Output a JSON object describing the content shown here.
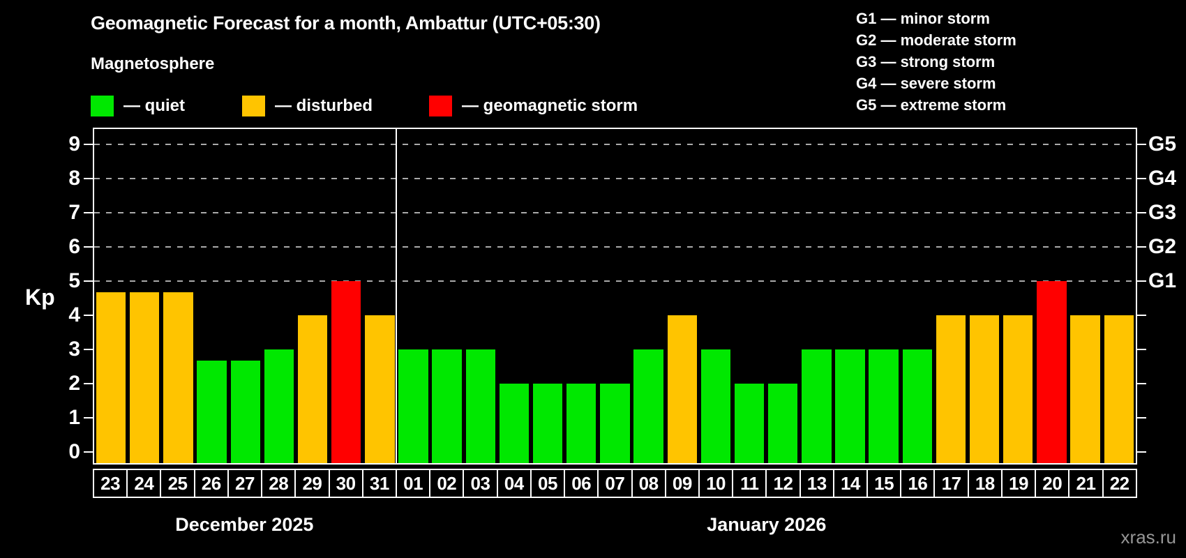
{
  "page": {
    "background": "#000000",
    "watermark": "xras.ru"
  },
  "header": {
    "title": "Geomagnetic Forecast for a month, Ambattur (UTC+05:30)",
    "subtitle": "Magnetosphere"
  },
  "legend": {
    "items": [
      {
        "key": "quiet",
        "label": "— quiet",
        "color": "#00e800"
      },
      {
        "key": "disturbed",
        "label": "— disturbed",
        "color": "#ffc400"
      },
      {
        "key": "storm",
        "label": "— geomagnetic storm",
        "color": "#ff0000"
      }
    ]
  },
  "g_legend": {
    "items": [
      "G1 — minor storm",
      "G2 — moderate storm",
      "G3 — strong storm",
      "G4 — severe storm",
      "G5 — extreme storm"
    ]
  },
  "chart_data": {
    "type": "bar",
    "title": "Geomagnetic Forecast for a month, Ambattur (UTC+05:30)",
    "ylabel": "Kp",
    "ylim": [
      0,
      9.5
    ],
    "y_ticks": [
      0,
      1,
      2,
      3,
      4,
      5,
      6,
      7,
      8,
      9
    ],
    "gridlines_at": [
      5,
      6,
      7,
      8,
      9
    ],
    "grid": true,
    "legend_position": "top",
    "right_axis_labels": [
      {
        "kp": 5,
        "label": "G1"
      },
      {
        "kp": 6,
        "label": "G2"
      },
      {
        "kp": 7,
        "label": "G3"
      },
      {
        "kp": 8,
        "label": "G4"
      },
      {
        "kp": 9,
        "label": "G5"
      }
    ],
    "months": [
      {
        "label": "December 2025",
        "days": 9
      },
      {
        "label": "January 2026",
        "days": 22
      }
    ],
    "status_colors": {
      "quiet": "#00e800",
      "disturbed": "#ffc400",
      "storm": "#ff0000"
    },
    "bars": [
      {
        "month": "December 2025",
        "day": "23",
        "value": 4.67,
        "status": "disturbed"
      },
      {
        "month": "December 2025",
        "day": "24",
        "value": 4.67,
        "status": "disturbed"
      },
      {
        "month": "December 2025",
        "day": "25",
        "value": 4.67,
        "status": "disturbed"
      },
      {
        "month": "December 2025",
        "day": "26",
        "value": 2.67,
        "status": "quiet"
      },
      {
        "month": "December 2025",
        "day": "27",
        "value": 2.67,
        "status": "quiet"
      },
      {
        "month": "December 2025",
        "day": "28",
        "value": 3,
        "status": "quiet"
      },
      {
        "month": "December 2025",
        "day": "29",
        "value": 4,
        "status": "disturbed"
      },
      {
        "month": "December 2025",
        "day": "30",
        "value": 5,
        "status": "storm"
      },
      {
        "month": "December 2025",
        "day": "31",
        "value": 4,
        "status": "disturbed"
      },
      {
        "month": "January 2026",
        "day": "01",
        "value": 3,
        "status": "quiet"
      },
      {
        "month": "January 2026",
        "day": "02",
        "value": 3,
        "status": "quiet"
      },
      {
        "month": "January 2026",
        "day": "03",
        "value": 3,
        "status": "quiet"
      },
      {
        "month": "January 2026",
        "day": "04",
        "value": 2,
        "status": "quiet"
      },
      {
        "month": "January 2026",
        "day": "05",
        "value": 2,
        "status": "quiet"
      },
      {
        "month": "January 2026",
        "day": "06",
        "value": 2,
        "status": "quiet"
      },
      {
        "month": "January 2026",
        "day": "07",
        "value": 2,
        "status": "quiet"
      },
      {
        "month": "January 2026",
        "day": "08",
        "value": 3,
        "status": "quiet"
      },
      {
        "month": "January 2026",
        "day": "09",
        "value": 4,
        "status": "disturbed"
      },
      {
        "month": "January 2026",
        "day": "10",
        "value": 3,
        "status": "quiet"
      },
      {
        "month": "January 2026",
        "day": "11",
        "value": 2,
        "status": "quiet"
      },
      {
        "month": "January 2026",
        "day": "12",
        "value": 2,
        "status": "quiet"
      },
      {
        "month": "January 2026",
        "day": "13",
        "value": 3,
        "status": "quiet"
      },
      {
        "month": "January 2026",
        "day": "14",
        "value": 3,
        "status": "quiet"
      },
      {
        "month": "January 2026",
        "day": "15",
        "value": 3,
        "status": "quiet"
      },
      {
        "month": "January 2026",
        "day": "16",
        "value": 3,
        "status": "quiet"
      },
      {
        "month": "January 2026",
        "day": "17",
        "value": 4,
        "status": "disturbed"
      },
      {
        "month": "January 2026",
        "day": "18",
        "value": 4,
        "status": "disturbed"
      },
      {
        "month": "January 2026",
        "day": "19",
        "value": 4,
        "status": "disturbed"
      },
      {
        "month": "January 2026",
        "day": "20",
        "value": 5,
        "status": "storm"
      },
      {
        "month": "January 2026",
        "day": "21",
        "value": 4,
        "status": "disturbed"
      },
      {
        "month": "January 2026",
        "day": "22",
        "value": 4,
        "status": "disturbed"
      }
    ]
  }
}
